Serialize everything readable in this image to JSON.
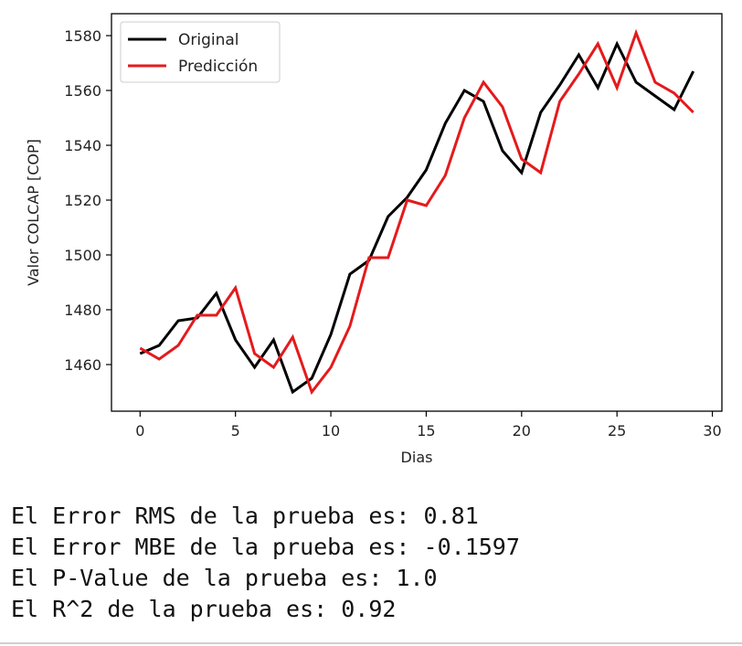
{
  "chart_data": {
    "type": "line",
    "title": "",
    "xlabel": "Dias",
    "ylabel": "Valor COLCAP [COP]",
    "xlim": [
      -1.5,
      30.5
    ],
    "ylim": [
      1443,
      1588
    ],
    "xticks": [
      0,
      5,
      10,
      15,
      20,
      25,
      30
    ],
    "yticks": [
      1460,
      1480,
      1500,
      1520,
      1540,
      1560,
      1580
    ],
    "grid": false,
    "legend_position": "top-left",
    "series": [
      {
        "name": "Original",
        "color": "#000000",
        "x": [
          0,
          1,
          2,
          3,
          4,
          5,
          6,
          7,
          8,
          9,
          10,
          11,
          12,
          13,
          14,
          15,
          16,
          17,
          18,
          19,
          20,
          21,
          22,
          23,
          24,
          25,
          26,
          27,
          28,
          29
        ],
        "values": [
          1464,
          1467,
          1476,
          1477,
          1486,
          1469,
          1459,
          1469,
          1450,
          1455,
          1471,
          1493,
          1498,
          1514,
          1521,
          1531,
          1548,
          1560,
          1556,
          1538,
          1530,
          1552,
          1562,
          1573,
          1561,
          1577,
          1563,
          1558,
          1553,
          1567
        ]
      },
      {
        "name": "Predicción",
        "color": "#e41a1c",
        "x": [
          0,
          1,
          2,
          3,
          4,
          5,
          6,
          7,
          8,
          9,
          10,
          11,
          12,
          13,
          14,
          15,
          16,
          17,
          18,
          19,
          20,
          21,
          22,
          23,
          24,
          25,
          26,
          27,
          28,
          29
        ],
        "values": [
          1466,
          1462,
          1467,
          1478,
          1478,
          1488,
          1464,
          1459,
          1470,
          1450,
          1459,
          1474,
          1499,
          1499,
          1520,
          1518,
          1529,
          1550,
          1563,
          1554,
          1535,
          1530,
          1556,
          1566,
          1577,
          1561,
          1581,
          1563,
          1559,
          1552
        ]
      }
    ]
  },
  "output_lines": [
    "El Error RMS de la prueba es: 0.81",
    "El Error MBE de la prueba es: -0.1597",
    "El P-Value de la prueba es: 1.0",
    "El R^2 de la prueba es: 0.92"
  ]
}
